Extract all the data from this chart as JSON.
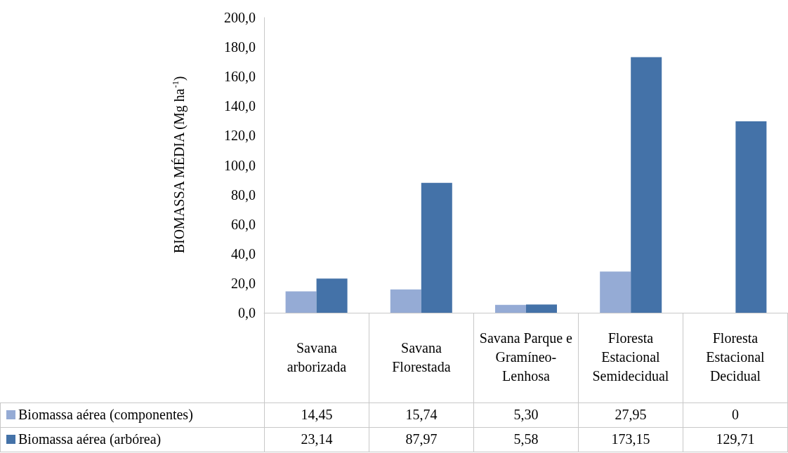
{
  "chart_data": {
    "type": "bar",
    "ylabel": "BIOMASSA MÉDIA (Mg ha$^{-1}$)",
    "categories": [
      "Savana arborizada",
      "Savana Florestada",
      "Savana Parque e Gramíneo-Lenhosa",
      "Floresta Estacional Semidecidual",
      "Floresta Estacional Decidual"
    ],
    "series": [
      {
        "name": "Biomassa aérea (componentes)",
        "color": "#95abd5",
        "values": [
          14.45,
          15.74,
          5.3,
          27.95,
          0
        ],
        "value_labels": [
          "14,45",
          "15,74",
          "5,30",
          "27,95",
          "0"
        ]
      },
      {
        "name": "Biomassa aérea (arbórea)",
        "color": "#4472a8",
        "values": [
          23.14,
          87.97,
          5.58,
          173.15,
          129.71
        ],
        "value_labels": [
          "23,14",
          "87,97",
          "5,58",
          "173,15",
          "129,71"
        ]
      }
    ],
    "ylim": [
      0,
      200
    ],
    "yticks": [
      {
        "value": 0,
        "label": "0,0"
      },
      {
        "value": 20,
        "label": "20,0"
      },
      {
        "value": 40,
        "label": "40,0"
      },
      {
        "value": 60,
        "label": "60,0"
      },
      {
        "value": 80,
        "label": "80,0"
      },
      {
        "value": 100,
        "label": "100,0"
      },
      {
        "value": 120,
        "label": "120,0"
      },
      {
        "value": 140,
        "label": "140,0"
      },
      {
        "value": 160,
        "label": "160,0"
      },
      {
        "value": 180,
        "label": "180,0"
      },
      {
        "value": 200,
        "label": "200,0"
      }
    ],
    "grid": false,
    "legend": "bottom"
  }
}
